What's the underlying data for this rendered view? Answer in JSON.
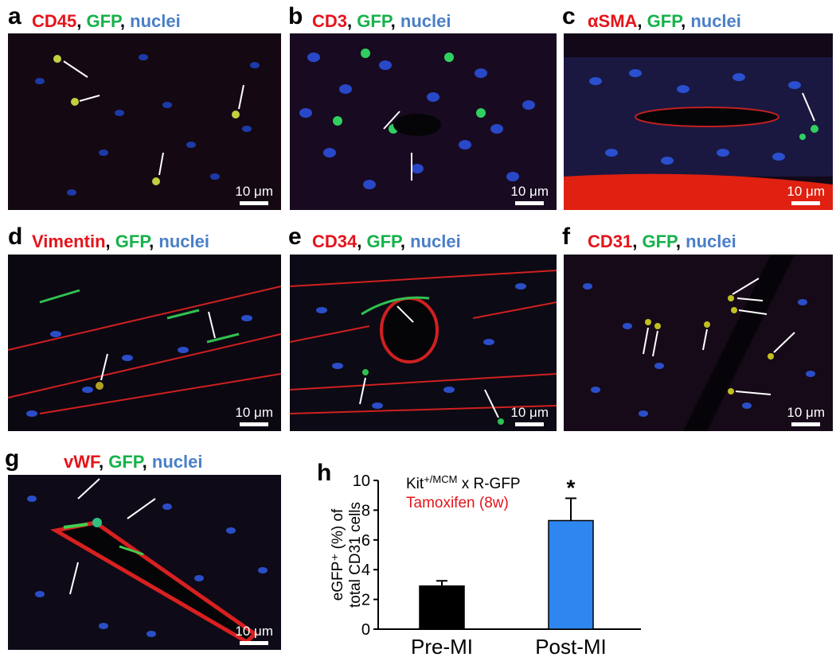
{
  "panels": [
    {
      "letter": "a",
      "marker": "CD45",
      "gfp": "GFP",
      "nuclei": "nuclei",
      "scale": "10 μm"
    },
    {
      "letter": "b",
      "marker": "CD3",
      "gfp": "GFP",
      "nuclei": "nuclei",
      "scale": "10 μm"
    },
    {
      "letter": "c",
      "marker": "αSMA",
      "gfp": "GFP",
      "nuclei": "nuclei",
      "scale": "10 μm"
    },
    {
      "letter": "d",
      "marker": "Vimentin",
      "gfp": "GFP",
      "nuclei": "nuclei",
      "scale": "10 μm"
    },
    {
      "letter": "e",
      "marker": "CD34",
      "gfp": "GFP",
      "nuclei": "nuclei",
      "scale": "10 μm"
    },
    {
      "letter": "f",
      "marker": "CD31",
      "gfp": "GFP",
      "nuclei": "nuclei",
      "scale": "10 μm"
    },
    {
      "letter": "g",
      "marker": "vWF",
      "gfp": "GFP",
      "nuclei": "nuclei",
      "scale": "10 μm"
    }
  ],
  "separators": {
    "comma": ","
  },
  "panel_h": {
    "letter": "h"
  },
  "colors": {
    "red": "#e4141b",
    "green": "#16b24a",
    "blue": "#4a7fc8",
    "bar_pre": "#000000",
    "bar_post": "#2e86f0"
  },
  "chart_data": {
    "type": "bar",
    "categories": [
      "Pre-MI",
      "Post-MI"
    ],
    "values": [
      2.9,
      7.3
    ],
    "errors": [
      0.35,
      1.5
    ],
    "ylim": [
      0,
      10
    ],
    "yticks": [
      "0",
      "2",
      "4",
      "6",
      "8",
      "10"
    ],
    "ylabel_line1": "eGFP⁺ (%) of",
    "ylabel_line2": "total CD31 cells",
    "legend_line1_base": "Kit",
    "legend_line1_sup": "+/MCM",
    "legend_line1_rest": " x R-GFP",
    "legend_line2": "Tamoxifen (8w)",
    "significance": "*"
  }
}
